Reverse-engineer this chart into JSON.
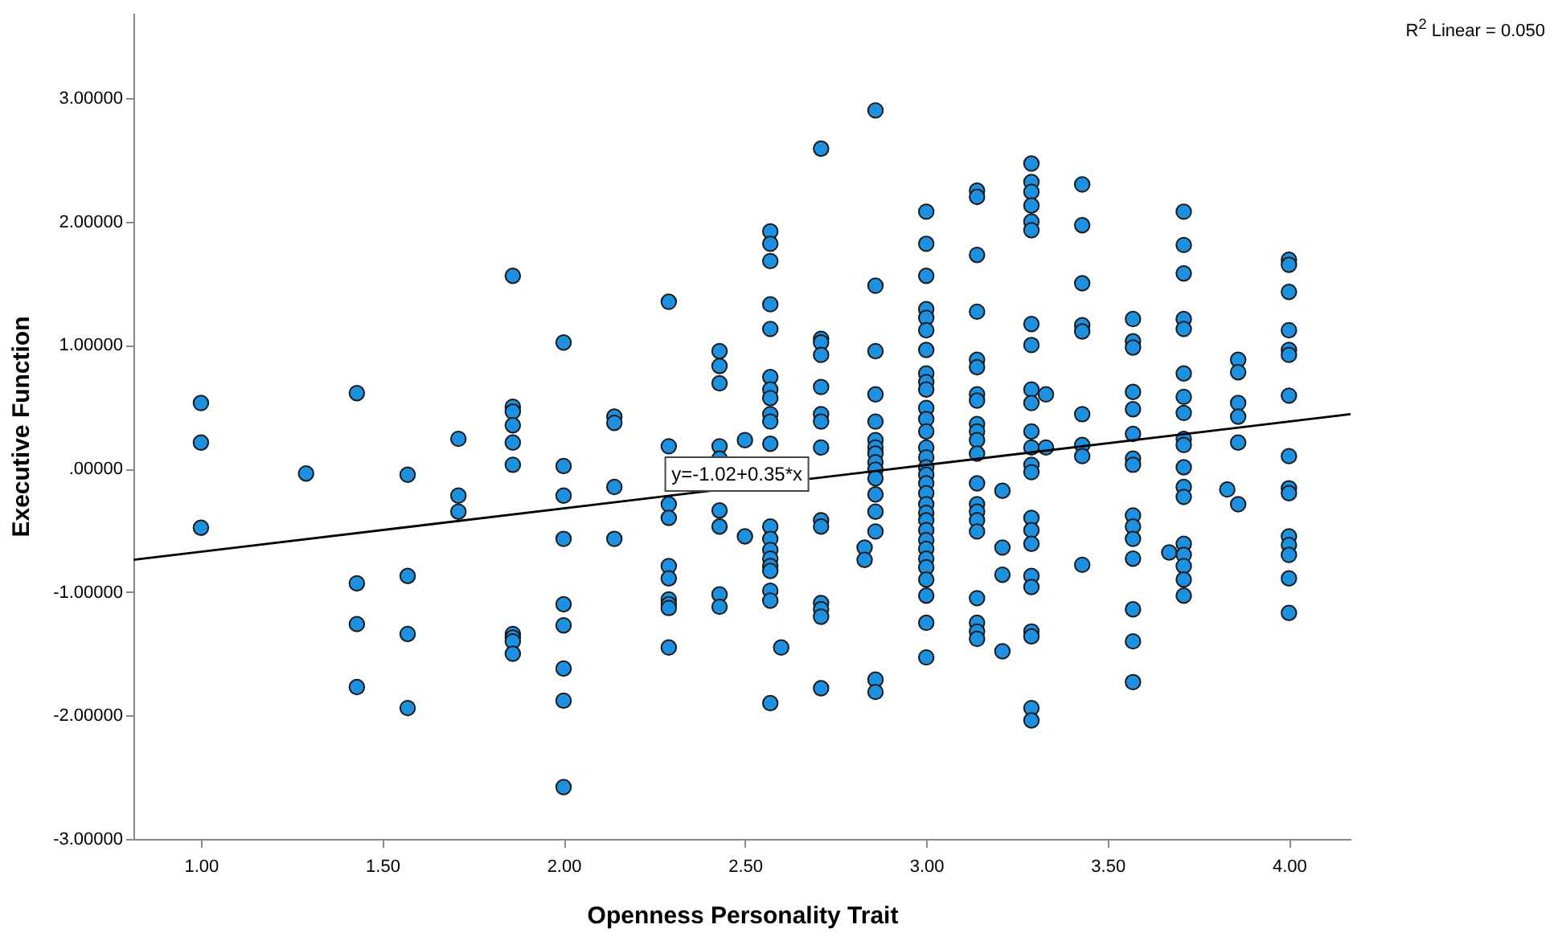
{
  "chart_data": {
    "type": "scatter",
    "xlabel": "Openness Personality Trait",
    "ylabel": "Executive Function",
    "xlim": [
      0.814,
      4.17
    ],
    "ylim": [
      -3,
      3.69
    ],
    "xticks": [
      {
        "value": 1,
        "label": "1.00"
      },
      {
        "value": 1.5,
        "label": "1.50"
      },
      {
        "value": 2,
        "label": "2.00"
      },
      {
        "value": 2.5,
        "label": "2.50"
      },
      {
        "value": 3,
        "label": "3.00"
      },
      {
        "value": 3.5,
        "label": "3.50"
      },
      {
        "value": 4,
        "label": "4.00"
      }
    ],
    "yticks": [
      {
        "value": -3,
        "label": "-3.00000"
      },
      {
        "value": -2,
        "label": "-2.00000"
      },
      {
        "value": -1,
        "label": "-1.00000"
      },
      {
        "value": 0,
        "label": ".00000"
      },
      {
        "value": 1,
        "label": "1.00000"
      },
      {
        "value": 2,
        "label": "2.00000"
      },
      {
        "value": 3,
        "label": "3.00000"
      }
    ],
    "grid": false,
    "annotations": [
      "R$^{2}$ Linear = 0.050",
      {
        "text": "y=-1.02+0.35*x",
        "x": 2.5,
        "y": -0.15
      }
    ],
    "series": [
      {
        "color": "#1e90e0",
        "marker": "circle",
        "x": [
          1,
          1,
          1,
          1.29,
          1.43,
          1.43,
          1.43,
          1.43,
          1.57,
          1.57,
          1.57,
          1.57,
          1.71,
          1.71,
          1.71,
          1.86,
          1.86,
          1.86,
          1.86,
          1.86,
          1.86,
          1.86,
          1.86,
          1.86,
          1.86,
          2,
          2,
          2,
          2,
          2,
          2,
          2,
          2,
          2,
          2.14,
          2.14,
          2.14,
          2.14,
          2.29,
          2.29,
          2.29,
          2.29,
          2.29,
          2.29,
          2.29,
          2.29,
          2.29,
          2.29,
          2.43,
          2.43,
          2.43,
          2.43,
          2.43,
          2.43,
          2.43,
          2.43,
          2.43,
          2.5,
          2.5,
          2.57,
          2.57,
          2.57,
          2.57,
          2.57,
          2.57,
          2.57,
          2.57,
          2.57,
          2.57,
          2.57,
          2.57,
          2.57,
          2.57,
          2.57,
          2.57,
          2.57,
          2.57,
          2.57,
          2.57,
          2.6,
          2.71,
          2.71,
          2.71,
          2.71,
          2.71,
          2.71,
          2.71,
          2.71,
          2.71,
          2.71,
          2.71,
          2.71,
          2.71,
          2.71,
          2.83,
          2.83,
          2.86,
          2.86,
          2.86,
          2.86,
          2.86,
          2.86,
          2.86,
          2.86,
          2.86,
          2.86,
          2.86,
          2.86,
          2.86,
          2.86,
          2.86,
          2.86,
          3,
          3,
          3,
          3,
          3,
          3,
          3,
          3,
          3,
          3,
          3,
          3,
          3,
          3,
          3,
          3,
          3,
          3,
          3,
          3,
          3,
          3,
          3,
          3,
          3,
          3,
          3,
          3,
          3,
          3,
          3,
          3.14,
          3.14,
          3.14,
          3.14,
          3.14,
          3.14,
          3.14,
          3.14,
          3.14,
          3.14,
          3.14,
          3.14,
          3.14,
          3.14,
          3.14,
          3.14,
          3.14,
          3.14,
          3.14,
          3.14,
          3.14,
          3.21,
          3.21,
          3.21,
          3.21,
          3.29,
          3.29,
          3.29,
          3.29,
          3.29,
          3.29,
          3.29,
          3.29,
          3.29,
          3.29,
          3.29,
          3.29,
          3.29,
          3.29,
          3.29,
          3.29,
          3.29,
          3.29,
          3.29,
          3.29,
          3.29,
          3.29,
          3.29,
          3.33,
          3.33,
          3.43,
          3.43,
          3.43,
          3.43,
          3.43,
          3.43,
          3.43,
          3.43,
          3.43,
          3.57,
          3.57,
          3.57,
          3.57,
          3.57,
          3.57,
          3.57,
          3.57,
          3.57,
          3.57,
          3.57,
          3.57,
          3.57,
          3.57,
          3.57,
          3.67,
          3.71,
          3.71,
          3.71,
          3.71,
          3.71,
          3.71,
          3.71,
          3.71,
          3.71,
          3.71,
          3.71,
          3.71,
          3.71,
          3.71,
          3.71,
          3.71,
          3.71,
          3.71,
          3.83,
          3.86,
          3.86,
          3.86,
          3.86,
          3.86,
          3.86,
          4,
          4,
          4,
          4,
          4,
          4,
          4,
          4,
          4,
          4,
          4,
          4,
          4,
          4,
          4
        ],
        "values": [
          0.53,
          0.21,
          -0.48,
          -0.04,
          0.61,
          -0.93,
          -1.26,
          -1.77,
          -0.05,
          -0.87,
          -1.34,
          -1.94,
          0.24,
          -0.22,
          -0.35,
          1.56,
          0.5,
          0.46,
          0.35,
          0.21,
          0.03,
          -1.34,
          -1.37,
          -1.4,
          -1.5,
          1.02,
          0.02,
          -0.22,
          -0.57,
          -1.1,
          -1.27,
          -1.62,
          -1.88,
          -2.58,
          0.42,
          0.37,
          -0.15,
          -0.57,
          1.35,
          0.18,
          -0.29,
          -0.4,
          -0.79,
          -0.89,
          -1.06,
          -1.1,
          -1.13,
          -1.45,
          0.95,
          0.83,
          0.69,
          0.18,
          0.08,
          -0.34,
          -0.47,
          -1.02,
          -1.12,
          0.23,
          -0.55,
          1.92,
          1.82,
          1.68,
          1.33,
          1.13,
          0.74,
          0.64,
          0.57,
          0.44,
          0.38,
          0.2,
          -0.47,
          -0.57,
          -0.66,
          -0.73,
          -0.79,
          -0.83,
          -0.99,
          -1.07,
          -1.9,
          -1.45,
          2.59,
          1.05,
          1.02,
          0.92,
          0.66,
          0.44,
          0.38,
          0.17,
          -0.42,
          -0.47,
          -1.09,
          -1.14,
          -1.2,
          -1.78,
          -0.64,
          -0.74,
          2.9,
          1.48,
          0.95,
          0.6,
          0.38,
          0.23,
          0.17,
          0.12,
          0.05,
          -0.01,
          -0.08,
          -0.21,
          -0.35,
          -0.51,
          -1.71,
          -1.81,
          2.08,
          1.82,
          1.56,
          1.29,
          1.22,
          1.12,
          0.96,
          0.77,
          0.7,
          0.64,
          0.49,
          0.4,
          0.3,
          0.17,
          0.09,
          0.01,
          -0.05,
          -0.12,
          -0.2,
          -0.29,
          -0.36,
          -0.42,
          -0.5,
          -0.58,
          -0.65,
          -0.73,
          -0.8,
          -0.9,
          -1.03,
          -1.25,
          -1.53,
          2.25,
          2.2,
          1.73,
          1.27,
          0.88,
          0.82,
          0.6,
          0.55,
          0.36,
          0.3,
          0.23,
          0.12,
          -0.12,
          -0.29,
          -0.35,
          -0.42,
          -0.51,
          -1.05,
          -1.25,
          -1.32,
          -1.38,
          -0.18,
          -0.64,
          -0.86,
          -1.48,
          2.47,
          2.32,
          2.24,
          2.13,
          2,
          1.93,
          1.17,
          1,
          0.64,
          0.53,
          0.3,
          0.17,
          0.03,
          -0.03,
          -0.4,
          -0.5,
          -0.61,
          -0.87,
          -0.96,
          -1.32,
          -1.36,
          -1.94,
          -2.04,
          0.6,
          0.17,
          2.3,
          1.97,
          1.5,
          1.16,
          1.11,
          0.44,
          0.19,
          0.1,
          -0.78,
          1.21,
          1.03,
          0.98,
          0.62,
          0.48,
          0.28,
          0.08,
          0.03,
          -0.38,
          -0.47,
          -0.57,
          -0.73,
          -1.14,
          -1.4,
          -1.73,
          -0.68,
          2.08,
          1.81,
          1.58,
          1.21,
          1.13,
          0.77,
          0.58,
          0.45,
          0.24,
          0.19,
          0.01,
          -0.15,
          -0.23,
          -0.61,
          -0.7,
          -0.79,
          -0.9,
          -1.03,
          -0.17,
          0.88,
          0.78,
          0.53,
          0.42,
          0.21,
          -0.29,
          1.69,
          1.65,
          1.43,
          1.12,
          0.96,
          0.92,
          0.59,
          0.1,
          -0.16,
          -0.2,
          -0.55,
          -0.62,
          -0.7,
          -0.89,
          -1.17
        ]
      },
      {
        "type": "line",
        "color": "#000000",
        "marker": "none",
        "x": [
          0.814,
          4.17
        ],
        "values": [
          -0.74,
          0.44
        ]
      }
    ]
  }
}
